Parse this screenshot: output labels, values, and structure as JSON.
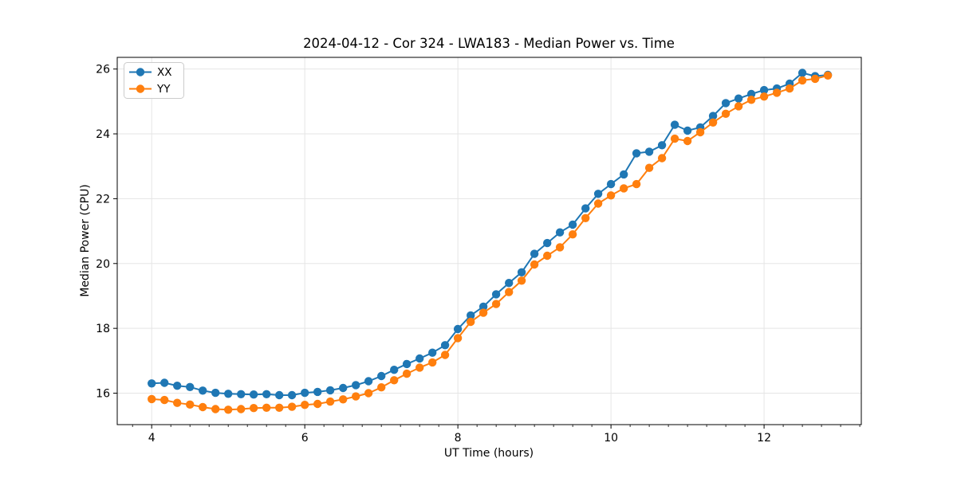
{
  "figure": {
    "background": "#ffffff",
    "frame_color": "#000000",
    "grid_color": "#e5e5e5"
  },
  "chart_data": {
    "type": "line",
    "title": "2024-04-12 - Cor 324 - LWA183 - Median Power vs. Time",
    "xlabel": "UT Time (hours)",
    "ylabel": "Median Power (CPU)",
    "xlim": [
      3.55,
      13.27
    ],
    "ylim": [
      15.03,
      26.36
    ],
    "x_ticks": [
      4,
      6,
      8,
      10,
      12
    ],
    "y_ticks": [
      16,
      18,
      20,
      22,
      24,
      26
    ],
    "x_minor_tick_step": 0.25,
    "grid": true,
    "legend_position": "upper left",
    "marker": "circle",
    "x": [
      4.0,
      4.167,
      4.333,
      4.5,
      4.667,
      4.833,
      5.0,
      5.167,
      5.333,
      5.5,
      5.667,
      5.833,
      6.0,
      6.167,
      6.333,
      6.5,
      6.667,
      6.833,
      7.0,
      7.167,
      7.333,
      7.5,
      7.667,
      7.833,
      8.0,
      8.167,
      8.333,
      8.5,
      8.667,
      8.833,
      9.0,
      9.167,
      9.333,
      9.5,
      9.667,
      9.833,
      10.0,
      10.167,
      10.333,
      10.5,
      10.667,
      10.833,
      11.0,
      11.167,
      11.333,
      11.5,
      11.667,
      11.833,
      12.0,
      12.167,
      12.333,
      12.5,
      12.667,
      12.833
    ],
    "series": [
      {
        "name": "XX",
        "color": "#1f77b4",
        "values": [
          16.3,
          16.32,
          16.23,
          16.19,
          16.08,
          16.01,
          15.98,
          15.97,
          15.96,
          15.97,
          15.94,
          15.94,
          16.01,
          16.04,
          16.09,
          16.16,
          16.25,
          16.37,
          16.53,
          16.72,
          16.9,
          17.07,
          17.25,
          17.48,
          17.98,
          18.4,
          18.67,
          19.05,
          19.4,
          19.73,
          20.3,
          20.63,
          20.96,
          21.2,
          21.7,
          22.15,
          22.45,
          22.75,
          23.4,
          23.45,
          23.65,
          24.28,
          24.1,
          24.2,
          24.55,
          24.95,
          25.09,
          25.23,
          25.35,
          25.4,
          25.55,
          25.88,
          25.78,
          25.82
        ]
      },
      {
        "name": "YY",
        "color": "#ff7f0e",
        "values": [
          15.82,
          15.79,
          15.7,
          15.65,
          15.57,
          15.51,
          15.49,
          15.51,
          15.54,
          15.55,
          15.55,
          15.58,
          15.64,
          15.67,
          15.74,
          15.81,
          15.9,
          16.0,
          16.18,
          16.4,
          16.6,
          16.79,
          16.95,
          17.18,
          17.7,
          18.2,
          18.48,
          18.75,
          19.12,
          19.47,
          19.97,
          20.24,
          20.5,
          20.9,
          21.4,
          21.85,
          22.1,
          22.32,
          22.45,
          22.95,
          23.25,
          23.85,
          23.78,
          24.05,
          24.35,
          24.62,
          24.85,
          25.05,
          25.15,
          25.27,
          25.4,
          25.65,
          25.7,
          25.8
        ]
      }
    ]
  },
  "legend": {
    "items": [
      {
        "label": "XX",
        "color": "#1f77b4"
      },
      {
        "label": "YY",
        "color": "#ff7f0e"
      }
    ]
  }
}
